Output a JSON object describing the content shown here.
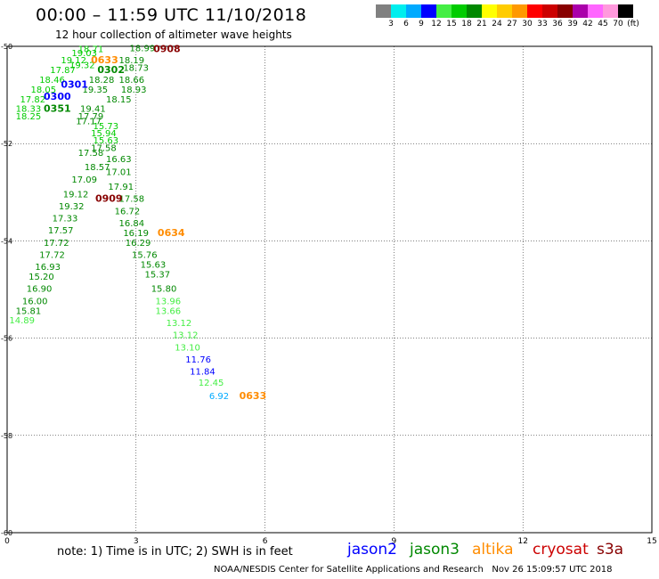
{
  "header": {
    "title": "00:00 – 11:59 UTC 11/10/2018",
    "subtitle": "12 hour collection of altimeter wave heights"
  },
  "colorbar": {
    "colors": [
      "#808080",
      "#00eeee",
      "#00aaff",
      "#0000ff",
      "#44ee44",
      "#00cc00",
      "#008800",
      "#ffff00",
      "#ffcc00",
      "#ff9900",
      "#ff0000",
      "#cc0000",
      "#880000",
      "#aa00aa",
      "#ff66ff",
      "#ff99dd",
      "#000000"
    ],
    "labels": [
      "3",
      "6",
      "9",
      "12",
      "15",
      "18",
      "21",
      "24",
      "27",
      "30",
      "33",
      "36",
      "39",
      "42",
      "45",
      "70",
      "(ft)"
    ]
  },
  "map": {
    "x_ticks": [
      "0",
      "3",
      "6",
      "9",
      "12",
      "15"
    ],
    "y_ticks": [
      "-50",
      "-52",
      "-54",
      "-56",
      "-58",
      "-60"
    ],
    "xlim": [
      0,
      15
    ],
    "ylim": [
      -60,
      -50
    ],
    "grid": true
  },
  "chart_data": {
    "type": "scatter",
    "satellite_colors": {
      "jason2": "#0000ff",
      "jason3": "#008800",
      "altika": "#ff8c00",
      "cryosat": "#cc0000",
      "s3a": "#880000"
    },
    "points": [
      {
        "lon": 2.85,
        "lat": -50.1,
        "label": "18.99",
        "color": "#008800"
      },
      {
        "lon": 1.65,
        "lat": -50.12,
        "label": "18.71",
        "color": "#00cc00"
      },
      {
        "lon": 1.5,
        "lat": -50.2,
        "label": "19.03",
        "color": "#00cc00"
      },
      {
        "lon": 1.25,
        "lat": -50.35,
        "label": "19.12",
        "color": "#00cc00"
      },
      {
        "lon": 1.45,
        "lat": -50.45,
        "label": "19.32",
        "color": "#00cc00"
      },
      {
        "lon": 2.6,
        "lat": -50.35,
        "label": "18.19",
        "color": "#008800"
      },
      {
        "lon": 2.7,
        "lat": -50.5,
        "label": "18.73",
        "color": "#008800"
      },
      {
        "lon": 1.0,
        "lat": -50.55,
        "label": "17.87",
        "color": "#00cc00"
      },
      {
        "lon": 0.75,
        "lat": -50.75,
        "label": "18.46",
        "color": "#00cc00"
      },
      {
        "lon": 1.9,
        "lat": -50.75,
        "label": "18.28",
        "color": "#008800"
      },
      {
        "lon": 2.6,
        "lat": -50.75,
        "label": "18.66",
        "color": "#008800"
      },
      {
        "lon": 0.55,
        "lat": -50.95,
        "label": "18.05",
        "color": "#00cc00"
      },
      {
        "lon": 1.75,
        "lat": -50.95,
        "label": "19.35",
        "color": "#008800"
      },
      {
        "lon": 2.65,
        "lat": -50.95,
        "label": "18.93",
        "color": "#008800"
      },
      {
        "lon": 0.3,
        "lat": -51.15,
        "label": "17.82",
        "color": "#00cc00"
      },
      {
        "lon": 2.3,
        "lat": -51.15,
        "label": "18.15",
        "color": "#008800"
      },
      {
        "lon": 0.2,
        "lat": -51.35,
        "label": "18.33",
        "color": "#00cc00"
      },
      {
        "lon": 1.7,
        "lat": -51.35,
        "label": "19.41",
        "color": "#008800"
      },
      {
        "lon": 0.2,
        "lat": -51.5,
        "label": "18.25",
        "color": "#00cc00"
      },
      {
        "lon": 1.65,
        "lat": -51.5,
        "label": "17.79",
        "color": "#008800"
      },
      {
        "lon": 1.6,
        "lat": -51.6,
        "label": "17.17",
        "color": "#008800"
      },
      {
        "lon": 2.0,
        "lat": -51.7,
        "label": "15.73",
        "color": "#00cc00"
      },
      {
        "lon": 1.95,
        "lat": -51.85,
        "label": "15.94",
        "color": "#00cc00"
      },
      {
        "lon": 2.0,
        "lat": -52.0,
        "label": "15.63",
        "color": "#00cc00"
      },
      {
        "lon": 1.95,
        "lat": -52.15,
        "label": "17.58",
        "color": "#008800"
      },
      {
        "lon": 1.65,
        "lat": -52.25,
        "label": "17.58",
        "color": "#008800"
      },
      {
        "lon": 2.3,
        "lat": -52.38,
        "label": "16.63",
        "color": "#008800"
      },
      {
        "lon": 1.8,
        "lat": -52.55,
        "label": "18.57",
        "color": "#008800"
      },
      {
        "lon": 2.3,
        "lat": -52.65,
        "label": "17.01",
        "color": "#008800"
      },
      {
        "lon": 1.5,
        "lat": -52.8,
        "label": "17.09",
        "color": "#008800"
      },
      {
        "lon": 2.35,
        "lat": -52.95,
        "label": "17.91",
        "color": "#008800"
      },
      {
        "lon": 1.3,
        "lat": -53.1,
        "label": "19.12",
        "color": "#008800"
      },
      {
        "lon": 2.6,
        "lat": -53.2,
        "label": "17.58",
        "color": "#008800"
      },
      {
        "lon": 1.2,
        "lat": -53.35,
        "label": "19.32",
        "color": "#008800"
      },
      {
        "lon": 2.5,
        "lat": -53.45,
        "label": "16.72",
        "color": "#008800"
      },
      {
        "lon": 1.05,
        "lat": -53.6,
        "label": "17.33",
        "color": "#008800"
      },
      {
        "lon": 2.6,
        "lat": -53.7,
        "label": "16.84",
        "color": "#008800"
      },
      {
        "lon": 0.95,
        "lat": -53.85,
        "label": "17.57",
        "color": "#008800"
      },
      {
        "lon": 2.7,
        "lat": -53.9,
        "label": "16.19",
        "color": "#008800"
      },
      {
        "lon": 0.85,
        "lat": -54.1,
        "label": "17.72",
        "color": "#008800"
      },
      {
        "lon": 2.75,
        "lat": -54.1,
        "label": "16.29",
        "color": "#008800"
      },
      {
        "lon": 0.75,
        "lat": -54.35,
        "label": "17.72",
        "color": "#008800"
      },
      {
        "lon": 2.9,
        "lat": -54.35,
        "label": "15.76",
        "color": "#008800"
      },
      {
        "lon": 0.65,
        "lat": -54.6,
        "label": "16.93",
        "color": "#008800"
      },
      {
        "lon": 3.1,
        "lat": -54.55,
        "label": "15.63",
        "color": "#008800"
      },
      {
        "lon": 0.5,
        "lat": -54.8,
        "label": "15.20",
        "color": "#008800"
      },
      {
        "lon": 3.2,
        "lat": -54.75,
        "label": "15.37",
        "color": "#008800"
      },
      {
        "lon": 0.45,
        "lat": -55.05,
        "label": "16.90",
        "color": "#008800"
      },
      {
        "lon": 3.35,
        "lat": -55.05,
        "label": "15.80",
        "color": "#008800"
      },
      {
        "lon": 0.35,
        "lat": -55.3,
        "label": "16.00",
        "color": "#008800"
      },
      {
        "lon": 3.45,
        "lat": -55.3,
        "label": "13.96",
        "color": "#44ee44"
      },
      {
        "lon": 0.2,
        "lat": -55.5,
        "label": "15.81",
        "color": "#008800"
      },
      {
        "lon": 3.45,
        "lat": -55.5,
        "label": "13.66",
        "color": "#44ee44"
      },
      {
        "lon": 0.05,
        "lat": -55.7,
        "label": "14.89",
        "color": "#44ee44"
      },
      {
        "lon": 3.7,
        "lat": -55.75,
        "label": "13.12",
        "color": "#44ee44"
      },
      {
        "lon": 3.85,
        "lat": -56.0,
        "label": "13.12",
        "color": "#44ee44"
      },
      {
        "lon": 3.9,
        "lat": -56.25,
        "label": "13.10",
        "color": "#44ee44"
      },
      {
        "lon": 4.15,
        "lat": -56.5,
        "label": "11.76",
        "color": "#0000ff"
      },
      {
        "lon": 4.25,
        "lat": -56.75,
        "label": "11.84",
        "color": "#0000ff"
      },
      {
        "lon": 4.45,
        "lat": -56.98,
        "label": "12.45",
        "color": "#44ee44"
      },
      {
        "lon": 4.7,
        "lat": -57.25,
        "label": "6.92",
        "color": "#00aaff"
      }
    ],
    "time_labels": [
      {
        "lon": 3.4,
        "lat": -50.12,
        "label": "0908",
        "color": "#880000"
      },
      {
        "lon": 1.95,
        "lat": -50.35,
        "label": "0633",
        "color": "#ff8c00"
      },
      {
        "lon": 2.1,
        "lat": -50.55,
        "label": "0302",
        "color": "#008800"
      },
      {
        "lon": 1.25,
        "lat": -50.85,
        "label": "0301",
        "color": "#0000ff"
      },
      {
        "lon": 0.85,
        "lat": -51.1,
        "label": "0300",
        "color": "#0000ff"
      },
      {
        "lon": 0.85,
        "lat": -51.35,
        "label": "0351",
        "color": "#008800"
      },
      {
        "lon": 2.05,
        "lat": -53.2,
        "label": "0909",
        "color": "#880000"
      },
      {
        "lon": 3.5,
        "lat": -53.9,
        "label": "0634",
        "color": "#ff8c00"
      },
      {
        "lon": 5.4,
        "lat": -57.25,
        "label": "0633",
        "color": "#ff8c00"
      }
    ]
  },
  "footer": {
    "note": "note: 1) Time is in UTC; 2) SWH is in feet",
    "credit": "NOAA/NESDIS Center for Satellite Applications and Research   Nov 26 15:09:57 UTC 2018",
    "legend": [
      {
        "name": "jason2",
        "color": "#0000ff"
      },
      {
        "name": "jason3",
        "color": "#008800"
      },
      {
        "name": "altika",
        "color": "#ff8c00"
      },
      {
        "name": "cryosat",
        "color": "#cc0000"
      },
      {
        "name": "s3a",
        "color": "#880000"
      }
    ]
  }
}
